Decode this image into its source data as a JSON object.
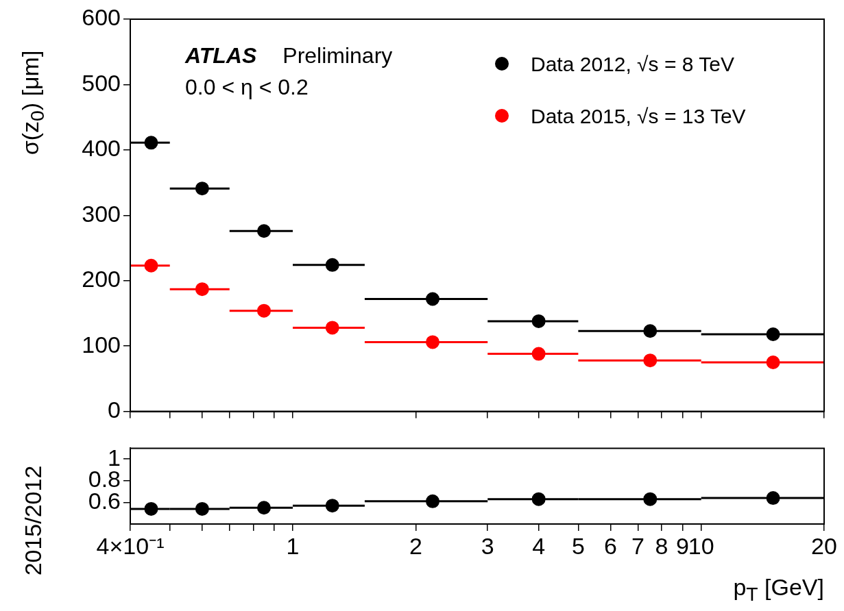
{
  "chart_data": [
    {
      "type": "scatter",
      "ylabel": "σ(z$_{0}$) [μm]",
      "annotations": [
        "ATLAS",
        "Preliminary",
        "0.0 < η < 0.2"
      ],
      "x": [
        0.45,
        0.6,
        0.85,
        1.25,
        2.2,
        4,
        7.5,
        15
      ],
      "xlim": [
        0.4,
        20
      ],
      "xticks": [
        0.4,
        0.5,
        0.6,
        0.7,
        0.8,
        0.9,
        1,
        2,
        3,
        4,
        5,
        6,
        7,
        8,
        9,
        10,
        20
      ],
      "ylim": [
        0,
        600
      ],
      "yticks": [
        0,
        100,
        200,
        300,
        400,
        500,
        600
      ],
      "tick_labels": "y",
      "grid": false,
      "legend": "top right",
      "marker": "circle",
      "log": "x",
      "series": [
        {
          "name": "Data 2012, √s = 8 TeV",
          "color": "#000000",
          "values": [
            411,
            341,
            276,
            224,
            172,
            138,
            123,
            118
          ],
          "xerrors": [
            [
              0.4,
              0.5
            ],
            [
              0.5,
              0.7
            ],
            [
              0.7,
              1
            ],
            [
              1,
              1.5
            ],
            [
              1.5,
              3
            ],
            [
              3,
              5
            ],
            [
              5,
              10
            ],
            [
              10,
              20
            ]
          ]
        },
        {
          "name": "Data 2015, √s = 13 TeV",
          "color": "#ff0000",
          "values": [
            223,
            187,
            154,
            128,
            106,
            88,
            78,
            75
          ],
          "xerrors": [
            [
              0.4,
              0.5
            ],
            [
              0.5,
              0.7
            ],
            [
              0.7,
              1
            ],
            [
              1,
              1.5
            ],
            [
              1.5,
              3
            ],
            [
              3,
              5
            ],
            [
              5,
              10
            ],
            [
              10,
              20
            ]
          ]
        }
      ]
    },
    {
      "type": "scatter",
      "xlabel": "p$_{T}$ [GeV]",
      "ylabel": "2015/2012",
      "x": [
        0.45,
        0.6,
        0.85,
        1.25,
        2.2,
        4,
        7.5,
        15
      ],
      "xlim": [
        0.4,
        20
      ],
      "xticks": [
        {
          "value": 0.4,
          "label": "4×10⁻¹"
        },
        {
          "value": 0.5,
          "label": null
        },
        {
          "value": 0.6,
          "label": null
        },
        {
          "value": 0.7,
          "label": null
        },
        {
          "value": 0.8,
          "label": null
        },
        {
          "value": 0.9,
          "label": null
        },
        1,
        2,
        3,
        4,
        5,
        6,
        7,
        8,
        9,
        10,
        20
      ],
      "ylim": [
        0.4,
        1.1
      ],
      "yticks": [
        0.6,
        0.8,
        1
      ],
      "grid": false,
      "marker": "circle",
      "log": "x",
      "series": [
        {
          "color": "#000000",
          "values": [
            0.54,
            0.54,
            0.55,
            0.57,
            0.61,
            0.63,
            0.63,
            0.64
          ],
          "xerrors": [
            [
              0.4,
              0.5
            ],
            [
              0.5,
              0.7
            ],
            [
              0.7,
              1
            ],
            [
              1,
              1.5
            ],
            [
              1.5,
              3
            ],
            [
              3,
              5
            ],
            [
              5,
              10
            ],
            [
              10,
              20
            ]
          ]
        }
      ]
    }
  ]
}
